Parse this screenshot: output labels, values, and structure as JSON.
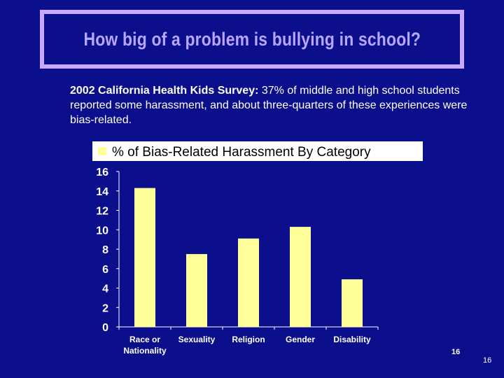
{
  "slide": {
    "title": "How big of a problem is bullying in school?",
    "desc_lead": "2002 California Health Kids Survey:",
    "desc_rest": "  37% of middle and high school students reported some harassment, and about three-quarters of these experiences were bias-related.",
    "page_number_left": "16",
    "page_number_right": "16"
  },
  "colors": {
    "background": "#0b0f8c",
    "title": "#b9a6ff",
    "title_border": "#c9a8ff",
    "bar": "#ffff99",
    "legend_bg": "#ffffff",
    "text": "#ffffff"
  },
  "chart_data": {
    "type": "bar",
    "title": "",
    "legend": [
      "% of Bias-Related Harassment By Category"
    ],
    "legend_position": "top",
    "categories": [
      "Race or Nationality",
      "Sexuality",
      "Religion",
      "Gender",
      "Disability"
    ],
    "category_lines": [
      [
        "Race or",
        "Nationality"
      ],
      [
        "Sexuality"
      ],
      [
        "Religion"
      ],
      [
        "Gender"
      ],
      [
        "Disability"
      ]
    ],
    "series": [
      {
        "name": "% of Bias-Related Harassment By Category",
        "values": [
          14.3,
          7.5,
          9.1,
          10.3,
          4.9
        ]
      }
    ],
    "ylim": [
      0,
      16
    ],
    "yticks": [
      0,
      2,
      4,
      6,
      8,
      10,
      12,
      14,
      16
    ],
    "xlabel": "",
    "ylabel": "",
    "grid": false
  }
}
